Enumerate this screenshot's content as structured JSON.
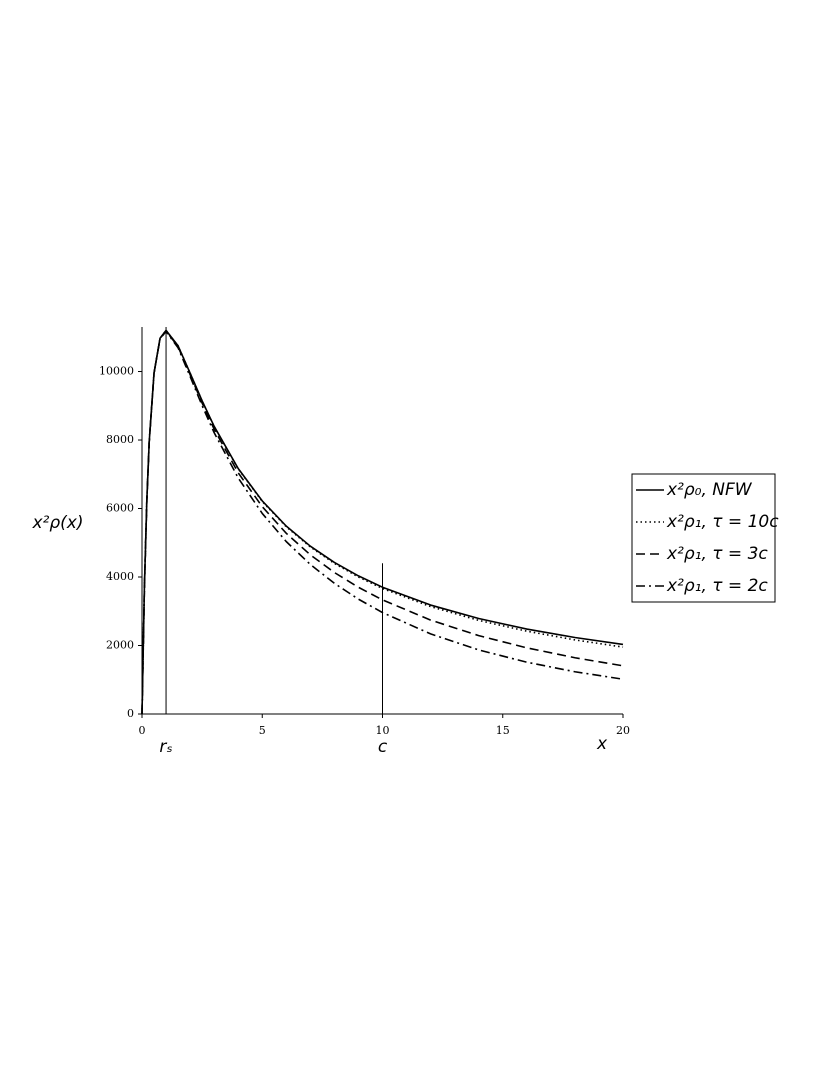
{
  "chart_data": {
    "type": "line",
    "y_label": "x²ρ(x)",
    "x_label": "x",
    "x": [
      0,
      0.1,
      0.2,
      0.3,
      0.5,
      0.75,
      1,
      1.5,
      2,
      2.5,
      3,
      4,
      5,
      6,
      7,
      8,
      9,
      10,
      12,
      14,
      16,
      18,
      20
    ],
    "series": [
      {
        "name": "x²ρ₀, NFW",
        "color": "#000000",
        "dash": "solid",
        "values": [
          0,
          3702,
          6222,
          7953,
          9956,
          10971,
          11200,
          10752,
          9956,
          9143,
          8400,
          7168,
          6222,
          5486,
          4900,
          4425,
          4032,
          3702,
          3181,
          2788,
          2480,
          2234,
          2032
        ]
      },
      {
        "name": "x²ρ₁, τ = 10c",
        "color": "#000000",
        "dash": "dotted",
        "values": [
          0,
          3702,
          6222,
          7953,
          9955,
          10970,
          11199,
          10750,
          9952,
          9137,
          8392,
          7157,
          6206,
          5466,
          4876,
          4397,
          4000,
          3665,
          3136,
          2734,
          2418,
          2164,
          1954
        ]
      },
      {
        "name": "x²ρ₁, τ = 3c",
        "color": "#000000",
        "dash": "dashed",
        "values": [
          0,
          3702,
          6222,
          7952,
          9953,
          10964,
          11188,
          10725,
          9912,
          9080,
          8317,
          7043,
          6054,
          5275,
          4647,
          4131,
          3699,
          3332,
          2742,
          2289,
          1931,
          1643,
          1407
        ]
      },
      {
        "name": "x²ρ₁, τ = 2c",
        "color": "#000000",
        "dash": "dashdot",
        "values": [
          0,
          3702,
          6221,
          7951,
          9950,
          10956,
          11172,
          10692,
          9857,
          9002,
          8215,
          6892,
          5856,
          5033,
          4365,
          3815,
          3353,
          2962,
          2339,
          1871,
          1512,
          1234,
          1016
        ]
      }
    ],
    "annotations": [
      {
        "x": 1,
        "label": "rₛ",
        "y_top": 11300
      },
      {
        "x": 10,
        "label": "c",
        "y_top": 4400
      }
    ],
    "xlim": [
      0,
      20
    ],
    "xticks": [
      0,
      5,
      10,
      15,
      20
    ],
    "ylim": [
      0,
      11300
    ],
    "yticks": [
      0,
      2000,
      4000,
      6000,
      8000,
      10000
    ],
    "grid": false,
    "legend": "right"
  }
}
